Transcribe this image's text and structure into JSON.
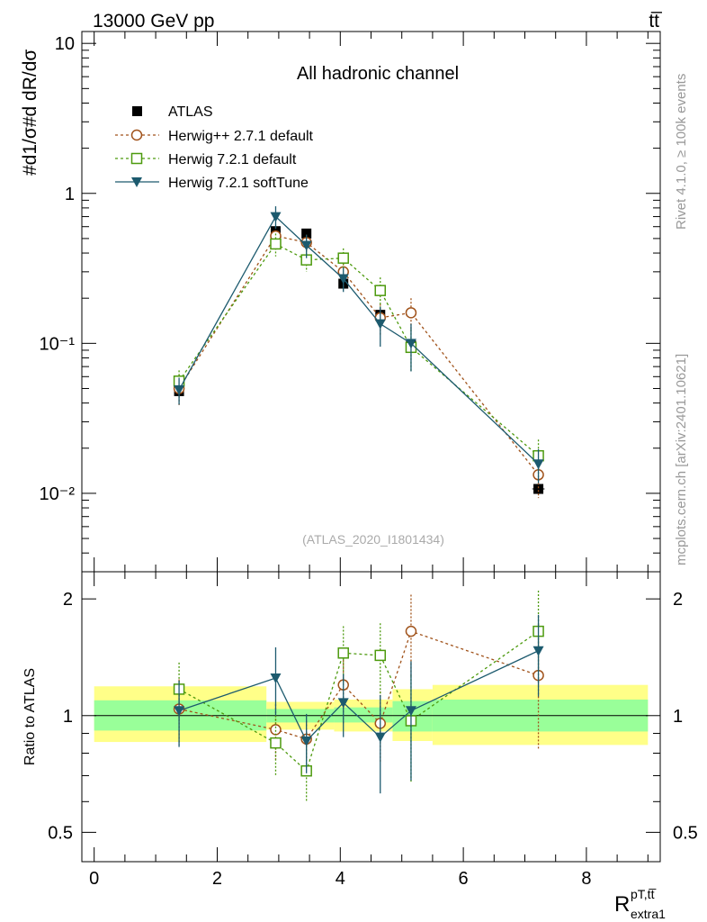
{
  "header": {
    "energy_label": "13000 GeV pp",
    "process_label": "tt̅"
  },
  "side_text": {
    "rivet": "Rivet 4.1.0, ≥ 100k events",
    "site": "mcplots.cern.ch [arXiv:2401.10621]"
  },
  "chart_data": [
    {
      "type": "line",
      "title": "All hadronic channel",
      "analysis_label": "(ATLAS_2020_I1801434)",
      "ylabel": "#d1/σ#d dR/dσ",
      "yscale": "log",
      "ylim": [
        0.003,
        12
      ],
      "xlim": [
        -0.2,
        9.2
      ],
      "y_ticks": [
        {
          "value": 0.01,
          "label": "10⁻²"
        },
        {
          "value": 0.1,
          "label": "10⁻¹"
        },
        {
          "value": 1,
          "label": "1"
        },
        {
          "value": 10,
          "label": "10"
        }
      ],
      "x": [
        1.38,
        2.95,
        3.45,
        4.05,
        4.65,
        5.15,
        7.22
      ],
      "xerr": [
        0.08,
        0.08,
        0.05,
        0.05,
        0.05,
        0.05,
        0.1
      ],
      "series": [
        {
          "name": "ATLAS",
          "style": "data",
          "color": "#000000",
          "values": [
            0.048,
            0.56,
            0.54,
            0.25,
            0.155,
            0.097,
            0.0107
          ]
        },
        {
          "name": "Herwig++ 2.7.1 default",
          "style": "circle",
          "color": "#a0521a",
          "values": [
            0.05,
            0.52,
            0.47,
            0.3,
            0.148,
            0.16,
            0.0133
          ],
          "err": [
            0.012,
            0.08,
            0.06,
            0.06,
            0.035,
            0.04,
            0.004
          ]
        },
        {
          "name": "Herwig 7.2.1 default",
          "style": "square",
          "color": "#4d9a0e",
          "values": [
            0.056,
            0.46,
            0.36,
            0.37,
            0.225,
            0.094,
            0.0178
          ],
          "err": [
            0.01,
            0.08,
            0.06,
            0.06,
            0.05,
            0.03,
            0.005
          ]
        },
        {
          "name": "Herwig 7.2.1 softTune",
          "style": "triangle",
          "color": "#1c5a6e",
          "values": [
            0.049,
            0.7,
            0.45,
            0.27,
            0.135,
            0.1,
            0.0157
          ],
          "err": [
            0.01,
            0.12,
            0.08,
            0.05,
            0.04,
            0.035,
            0.004
          ]
        }
      ]
    },
    {
      "type": "line",
      "ylabel": "Ratio to ATLAS",
      "xlabel": "R",
      "xlabel_sup": "pT,tt̅",
      "xlabel_sub": "extra1",
      "ylim": [
        0.42,
        2.35
      ],
      "xlim": [
        -0.2,
        9.2
      ],
      "y_ticks": [
        0.5,
        1,
        2
      ],
      "x_ticks": [
        0,
        2,
        4,
        6,
        8
      ],
      "x": [
        1.38,
        2.95,
        3.45,
        4.05,
        4.65,
        5.15,
        7.22
      ],
      "bands": [
        {
          "x0": 0,
          "x1": 2.8,
          "yellow": [
            0.855,
            1.19
          ],
          "green": [
            0.915,
            1.095
          ]
        },
        {
          "x0": 2.8,
          "x1": 3.9,
          "yellow": [
            0.92,
            1.085
          ],
          "green": [
            0.96,
            1.04
          ]
        },
        {
          "x0": 3.9,
          "x1": 4.85,
          "yellow": [
            0.91,
            1.1
          ],
          "green": [
            0.96,
            1.05
          ]
        },
        {
          "x0": 4.85,
          "x1": 5.5,
          "yellow": [
            0.86,
            1.17
          ],
          "green": [
            0.91,
            1.09
          ]
        },
        {
          "x0": 5.5,
          "x1": 9.0,
          "yellow": [
            0.84,
            1.2
          ],
          "green": [
            0.91,
            1.1
          ]
        }
      ],
      "series": [
        {
          "name": "Herwig++ 2.7.1 default",
          "style": "circle",
          "color": "#a0521a",
          "values": [
            1.04,
            0.92,
            0.87,
            1.2,
            0.955,
            1.65,
            1.27
          ],
          "err": [
            0.2,
            0.15,
            0.1,
            0.25,
            0.2,
            0.4,
            0.45
          ]
        },
        {
          "name": "Herwig 7.2.1 default",
          "style": "square",
          "color": "#4d9a0e",
          "values": [
            1.17,
            0.85,
            0.72,
            1.45,
            1.43,
            0.97,
            1.65
          ],
          "err": [
            0.2,
            0.15,
            0.12,
            0.25,
            0.3,
            0.3,
            0.45
          ]
        },
        {
          "name": "Herwig 7.2.1 softTune",
          "style": "triangle",
          "color": "#1c5a6e",
          "values": [
            1.03,
            1.25,
            0.86,
            1.08,
            0.88,
            1.03,
            1.47
          ],
          "err": [
            0.2,
            0.25,
            0.15,
            0.2,
            0.25,
            0.35,
            0.35
          ]
        }
      ]
    }
  ]
}
